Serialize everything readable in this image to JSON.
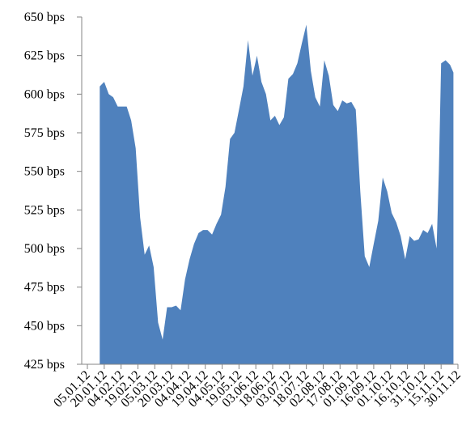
{
  "chart_data": {
    "type": "area",
    "color": "#4f81bd",
    "x": [
      "16.01.12",
      "20.01.12",
      "24.01.12",
      "28.01.12",
      "01.02.12",
      "05.02.12",
      "09.02.12",
      "13.02.12",
      "17.02.12",
      "21.02.12",
      "25.02.12",
      "29.02.12",
      "04.03.12",
      "08.03.12",
      "12.03.12",
      "16.03.12",
      "20.03.12",
      "24.03.12",
      "28.03.12",
      "01.04.12",
      "05.04.12",
      "09.04.12",
      "13.04.12",
      "17.04.12",
      "21.04.12",
      "25.04.12",
      "29.04.12",
      "03.05.12",
      "07.05.12",
      "11.05.12",
      "15.05.12",
      "19.05.12",
      "23.05.12",
      "27.05.12",
      "31.05.12",
      "04.06.12",
      "08.06.12",
      "12.06.12",
      "16.06.12",
      "20.06.12",
      "24.06.12",
      "28.06.12",
      "02.07.12",
      "06.07.12",
      "10.07.12",
      "14.07.12",
      "18.07.12",
      "22.07.12",
      "26.07.12",
      "30.07.12",
      "03.08.12",
      "07.08.12",
      "11.08.12",
      "15.08.12",
      "19.08.12",
      "23.08.12",
      "27.08.12",
      "31.08.12",
      "04.09.12",
      "08.09.12",
      "12.09.12",
      "16.09.12",
      "20.09.12",
      "24.09.12",
      "28.09.12",
      "02.10.12",
      "06.10.12",
      "10.10.12",
      "14.10.12",
      "18.10.12",
      "22.10.12",
      "26.10.12",
      "30.10.12",
      "03.11.12",
      "07.11.12",
      "11.11.12",
      "13.11.12",
      "15.11.12",
      "19.11.12",
      "23.11.12",
      "26.11.12"
    ],
    "values": [
      605,
      608,
      600,
      598,
      592,
      592,
      592,
      583,
      565,
      520,
      496,
      502,
      488,
      452,
      441,
      462,
      462,
      463,
      460,
      480,
      493,
      503,
      510,
      512,
      512,
      509,
      516,
      522,
      540,
      571,
      575,
      590,
      605,
      635,
      612,
      625,
      608,
      600,
      583,
      586,
      580,
      585,
      610,
      613,
      620,
      633,
      645,
      615,
      598,
      592,
      622,
      612,
      593,
      589,
      596,
      594,
      595,
      590,
      537,
      495,
      488,
      503,
      518,
      546,
      537,
      523,
      517,
      508,
      493,
      508,
      505,
      506,
      512,
      510,
      516,
      500,
      550,
      620,
      622,
      619,
      614
    ],
    "ylim": [
      425,
      650
    ],
    "yticks": [
      {
        "value": 425,
        "label": "425 bps"
      },
      {
        "value": 450,
        "label": "450 bps"
      },
      {
        "value": 475,
        "label": "475 bps"
      },
      {
        "value": 500,
        "label": "500 bps"
      },
      {
        "value": 525,
        "label": "525 bps"
      },
      {
        "value": 550,
        "label": "550 bps"
      },
      {
        "value": 575,
        "label": "575 bps"
      },
      {
        "value": 600,
        "label": "600 bps"
      },
      {
        "value": 625,
        "label": "625 bps"
      },
      {
        "value": 650,
        "label": "650 bps"
      }
    ],
    "xticks": [
      "05.01.12",
      "20.01.12",
      "04.02.12",
      "19.02.12",
      "05.03.12",
      "20.03.12",
      "04.04.12",
      "19.04.12",
      "04.05.12",
      "19.05.12",
      "03.06.12",
      "18.06.12",
      "03.07.12",
      "18.07.12",
      "02.08.12",
      "17.08.12",
      "01.09.12",
      "16.09.12",
      "01.10.12",
      "16.10.12",
      "31.10.12",
      "15.11.12",
      "30.11.12"
    ]
  }
}
